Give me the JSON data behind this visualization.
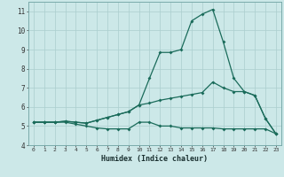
{
  "xlabel": "Humidex (Indice chaleur)",
  "x": [
    0,
    1,
    2,
    3,
    4,
    5,
    6,
    7,
    8,
    9,
    10,
    11,
    12,
    13,
    14,
    15,
    16,
    17,
    18,
    19,
    20,
    21,
    22,
    23
  ],
  "line1": [
    5.2,
    5.2,
    5.2,
    5.2,
    5.1,
    5.0,
    4.9,
    4.85,
    4.85,
    4.85,
    5.2,
    5.2,
    5.0,
    5.0,
    4.9,
    4.9,
    4.9,
    4.9,
    4.85,
    4.85,
    4.85,
    4.85,
    4.85,
    4.6
  ],
  "line2": [
    5.2,
    5.2,
    5.2,
    5.25,
    5.2,
    5.15,
    5.3,
    5.45,
    5.6,
    5.75,
    6.1,
    6.2,
    6.35,
    6.45,
    6.55,
    6.65,
    6.75,
    7.3,
    7.0,
    6.8,
    6.8,
    6.6,
    5.4,
    4.6
  ],
  "line3": [
    5.2,
    5.2,
    5.2,
    5.25,
    5.2,
    5.15,
    5.3,
    5.45,
    5.6,
    5.75,
    6.1,
    7.5,
    8.85,
    8.85,
    9.0,
    10.5,
    10.85,
    11.1,
    9.4,
    7.5,
    6.8,
    6.6,
    5.4,
    4.6
  ],
  "line_color": "#1a6b5a",
  "bg_color": "#cce8e8",
  "grid_color": "#aacece",
  "ylim": [
    4,
    11.5
  ],
  "xlim": [
    -0.5,
    23.5
  ],
  "yticks": [
    4,
    5,
    6,
    7,
    8,
    9,
    10,
    11
  ],
  "xticks": [
    0,
    1,
    2,
    3,
    4,
    5,
    6,
    7,
    8,
    9,
    10,
    11,
    12,
    13,
    14,
    15,
    16,
    17,
    18,
    19,
    20,
    21,
    22,
    23
  ]
}
